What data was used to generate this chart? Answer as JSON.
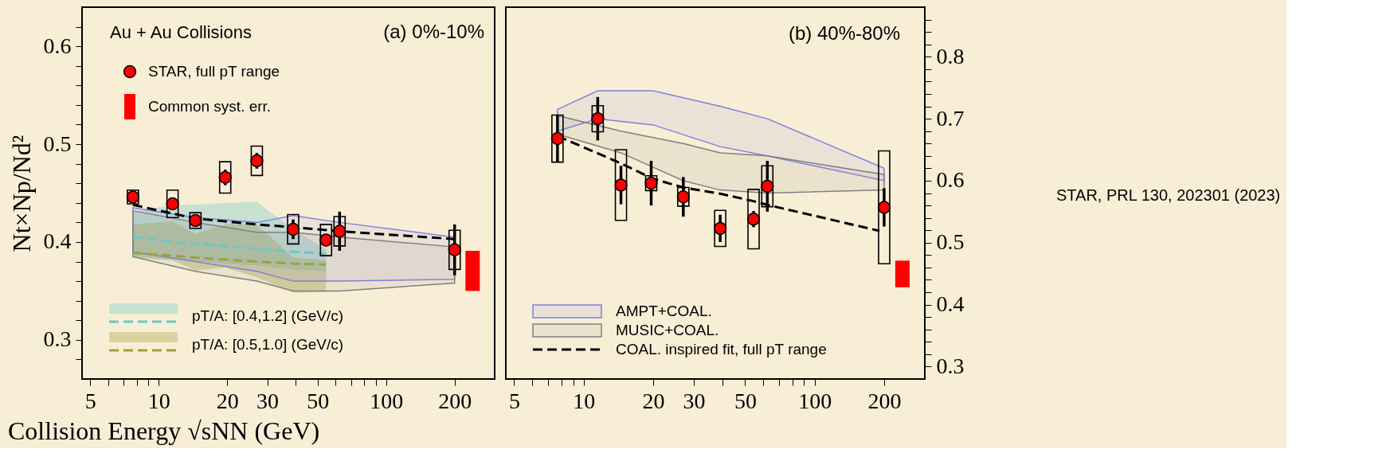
{
  "chart_data": [
    {
      "type": "scatter",
      "ylabel": "Nt×Np/Nd²",
      "xlabel": "Collision Energy √sNN (GeV)",
      "log": "x",
      "grid": false,
      "legend": "left",
      "xlim": [
        4.6,
        300
      ],
      "ylim": [
        0.26,
        0.64
      ],
      "xticks": [
        5,
        {
          "value": 6,
          "label": null
        },
        {
          "value": 7,
          "label": null
        },
        {
          "value": 8,
          "label": null
        },
        {
          "value": 9,
          "label": null
        },
        10,
        20,
        30,
        {
          "value": 40,
          "label": null
        },
        50,
        {
          "value": 60,
          "label": null
        },
        {
          "value": 70,
          "label": null
        },
        {
          "value": 80,
          "label": null
        },
        {
          "value": 90,
          "label": null
        },
        100,
        200
      ],
      "yticks": [
        {
          "value": 0.28,
          "label": null
        },
        0.3,
        {
          "value": 0.32,
          "label": null
        },
        {
          "value": 0.34,
          "label": null
        },
        {
          "value": 0.36,
          "label": null
        },
        {
          "value": 0.38,
          "label": null
        },
        0.4,
        {
          "value": 0.42,
          "label": null
        },
        {
          "value": 0.44,
          "label": null
        },
        {
          "value": 0.46,
          "label": null
        },
        {
          "value": 0.48,
          "label": null
        },
        0.5,
        {
          "value": 0.52,
          "label": null
        },
        {
          "value": 0.54,
          "label": null
        },
        {
          "value": 0.56,
          "label": null
        },
        {
          "value": 0.58,
          "label": null
        },
        0.6,
        {
          "value": 0.62,
          "label": null
        }
      ],
      "annotations": [
        "Au + Au Collisions",
        "(a) 0%-10%"
      ],
      "series": [
        {
          "name": "pT/A: [0.4,1.2] (GeV/c)",
          "type": "line",
          "line_style": "dashed",
          "color": "#6cc7c7",
          "x": [
            7.7,
            11.5,
            14.5,
            19.6,
            27,
            39,
            54.4
          ],
          "values": [
            0.405,
            0.4,
            0.398,
            0.396,
            0.393,
            0.39,
            0.388
          ],
          "lower": [
            0.385,
            0.382,
            0.38,
            0.378,
            0.376,
            0.372,
            0.37
          ],
          "upper": [
            0.43,
            0.438,
            0.438,
            0.44,
            0.441,
            0.413,
            0.392
          ]
        },
        {
          "name": "pT/A: [0.5,1.0] (GeV/c)",
          "type": "line",
          "line_style": "dashed",
          "color": "#a0a040",
          "x": [
            7.7,
            11.5,
            14.5,
            19.6,
            27,
            39,
            54.4
          ],
          "values": [
            0.389,
            0.386,
            0.384,
            0.382,
            0.38,
            0.378,
            0.377
          ],
          "lower": [
            0.384,
            0.381,
            0.371,
            0.374,
            0.364,
            0.348,
            0.349
          ],
          "upper": [
            0.418,
            0.421,
            0.408,
            0.418,
            0.418,
            0.384,
            0.381
          ]
        },
        {
          "type": "line",
          "color": "#7f7fe0",
          "x": [
            7.7,
            14.5,
            27,
            39,
            62.4,
            200
          ],
          "values": [
            null,
            null,
            null,
            null,
            null,
            null
          ],
          "lower": [
            0.39,
            0.38,
            0.37,
            0.36,
            0.36,
            0.362
          ],
          "upper": [
            0.435,
            0.425,
            0.42,
            0.427,
            0.42,
            0.405
          ]
        },
        {
          "type": "line",
          "color": "#808080",
          "x": [
            7.7,
            14.5,
            27,
            39,
            62.4,
            200
          ],
          "values": [
            null,
            null,
            null,
            null,
            null,
            null
          ],
          "lower": [
            0.385,
            0.37,
            0.36,
            0.35,
            0.35,
            0.358
          ],
          "upper": [
            0.432,
            0.42,
            0.41,
            0.41,
            0.405,
            0.395
          ]
        },
        {
          "type": "line",
          "line_style": "dashed",
          "color": "#000000",
          "x": [
            7.7,
            14.5,
            27,
            39,
            62.4,
            200
          ],
          "values": [
            0.438,
            0.424,
            0.418,
            0.415,
            0.411,
            0.403
          ]
        },
        {
          "name": "STAR, full pT range",
          "marker": "circle",
          "color": "#ff0000",
          "x": [
            7.7,
            11.5,
            14.5,
            19.6,
            27,
            39,
            54.4,
            62.4,
            200
          ],
          "values": [
            0.446,
            0.439,
            0.422,
            0.466,
            0.483,
            0.413,
            0.402,
            0.411,
            0.392
          ],
          "errors": [
            null,
            0.006,
            0.005,
            0.008,
            0.008,
            0.01,
            null,
            0.02,
            0.026
          ]
        },
        {
          "type": "bar",
          "color": "#000000",
          "x": [
            7.7,
            11.5,
            14.5,
            19.6,
            27,
            39,
            54.4,
            62.4,
            200
          ],
          "base": [
            0.439,
            0.425,
            0.414,
            0.45,
            0.468,
            0.398,
            0.386,
            0.396,
            0.372
          ],
          "values": [
            0.014,
            0.028,
            0.016,
            0.032,
            0.03,
            0.03,
            0.032,
            0.03,
            0.04
          ]
        },
        {
          "name": "Common syst. err.",
          "type": "bar",
          "color": "#ff0000",
          "x": [
            240
          ],
          "base": [
            0.35
          ],
          "values": [
            0.041
          ]
        }
      ]
    },
    {
      "type": "scatter",
      "log": "x",
      "grid": false,
      "legend": "bottom left",
      "xlim": [
        4.6,
        300
      ],
      "ylim": [
        0.28,
        0.88
      ],
      "xticks": [
        5,
        {
          "value": 6,
          "label": null
        },
        {
          "value": 7,
          "label": null
        },
        {
          "value": 8,
          "label": null
        },
        {
          "value": 9,
          "label": null
        },
        10,
        20,
        30,
        {
          "value": 40,
          "label": null
        },
        50,
        {
          "value": 60,
          "label": null
        },
        {
          "value": 70,
          "label": null
        },
        {
          "value": 80,
          "label": null
        },
        {
          "value": 90,
          "label": null
        },
        100,
        200
      ],
      "yticks": [
        0.3,
        {
          "value": 0.32,
          "label": null
        },
        {
          "value": 0.34,
          "label": null
        },
        {
          "value": 0.36,
          "label": null
        },
        {
          "value": 0.38,
          "label": null
        },
        0.4,
        {
          "value": 0.42,
          "label": null
        },
        {
          "value": 0.44,
          "label": null
        },
        {
          "value": 0.46,
          "label": null
        },
        {
          "value": 0.48,
          "label": null
        },
        0.5,
        {
          "value": 0.52,
          "label": null
        },
        {
          "value": 0.54,
          "label": null
        },
        {
          "value": 0.56,
          "label": null
        },
        {
          "value": 0.58,
          "label": null
        },
        0.6,
        {
          "value": 0.62,
          "label": null
        },
        {
          "value": 0.64,
          "label": null
        },
        {
          "value": 0.66,
          "label": null
        },
        {
          "value": 0.68,
          "label": null
        },
        0.7,
        {
          "value": 0.72,
          "label": null
        },
        {
          "value": 0.74,
          "label": null
        },
        {
          "value": 0.76,
          "label": null
        },
        {
          "value": 0.78,
          "label": null
        },
        0.8,
        {
          "value": 0.82,
          "label": null
        },
        {
          "value": 0.84,
          "label": null
        },
        {
          "value": 0.86,
          "label": null
        }
      ],
      "annotations": [
        "(b) 40%-80%",
        "STAR, PRL 130, 202301 (2023)"
      ],
      "series": [
        {
          "name": "AMPT+COAL.",
          "type": "line",
          "color": "#7f7fe0",
          "x": [
            7.7,
            11.5,
            20,
            39,
            62.4,
            200
          ],
          "values": [
            null,
            null,
            null,
            null,
            null,
            null
          ],
          "lower": [
            0.68,
            0.7,
            0.69,
            0.655,
            0.64,
            0.6
          ],
          "upper": [
            0.715,
            0.745,
            0.745,
            0.72,
            0.7,
            0.62
          ]
        },
        {
          "name": "MUSIC+COAL.",
          "type": "line",
          "color": "#808080",
          "x": [
            7.7,
            14.5,
            27,
            39,
            62.4,
            200
          ],
          "values": [
            null,
            null,
            null,
            null,
            null,
            null
          ],
          "lower": [
            0.675,
            0.645,
            0.6,
            0.585,
            0.58,
            0.585
          ],
          "upper": [
            0.705,
            0.68,
            0.66,
            0.645,
            0.64,
            0.61
          ]
        },
        {
          "name": "COAL. inspired fit, full pT range",
          "type": "line",
          "line_style": "dashed",
          "color": "#000000",
          "x": [
            7.7,
            14.5,
            20,
            27,
            39,
            54.4,
            62.4,
            191
          ],
          "values": [
            0.672,
            0.628,
            0.603,
            0.589,
            0.579,
            0.567,
            0.561,
            0.519
          ]
        },
        {
          "marker": "circle",
          "color": "#ff0000",
          "x": [
            7.7,
            11.5,
            14.5,
            19.6,
            27,
            39,
            54.4,
            62.4,
            200
          ],
          "values": [
            0.668,
            0.7,
            0.593,
            0.596,
            0.574,
            0.523,
            0.538,
            0.591,
            0.557
          ],
          "errors": [
            0.038,
            0.035,
            0.031,
            0.036,
            0.032,
            0.022,
            0.013,
            0.041,
            0.031
          ]
        },
        {
          "type": "bar",
          "color": "#000000",
          "x": [
            7.7,
            11.5,
            14.5,
            19.6,
            27,
            39,
            54.4,
            62.4,
            200
          ],
          "base": [
            0.63,
            0.679,
            0.536,
            0.584,
            0.559,
            0.494,
            0.49,
            0.558,
            0.466
          ],
          "values": [
            0.076,
            0.042,
            0.114,
            0.024,
            0.03,
            0.058,
            0.096,
            0.066,
            0.182
          ]
        },
        {
          "type": "bar",
          "color": "#ff0000",
          "x": [
            240
          ],
          "base": [
            0.428
          ],
          "values": [
            0.043
          ]
        }
      ]
    }
  ]
}
